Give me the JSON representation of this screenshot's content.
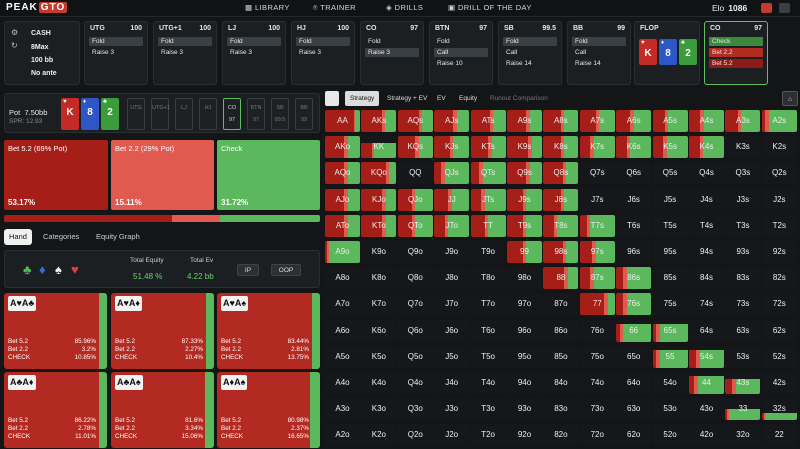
{
  "app": {
    "logo_a": "PEAK",
    "logo_b": "GTO"
  },
  "nav": [
    "LIBRARY",
    "TRAINER",
    "DRILLS",
    "DRILL OF THE DAY"
  ],
  "elo": {
    "label": "Elo",
    "value": "1086"
  },
  "game": {
    "type": "CASH",
    "players": "8Max",
    "stack": "100 bb",
    "ante": "No ante"
  },
  "seats": [
    {
      "name": "UTG",
      "stack": "100",
      "actions": [
        {
          "t": "Fold",
          "c": "hl"
        },
        {
          "t": "Raise 3",
          "c": ""
        }
      ]
    },
    {
      "name": "UTG+1",
      "stack": "100",
      "actions": [
        {
          "t": "Fold",
          "c": "hl"
        },
        {
          "t": "Raise 3",
          "c": ""
        }
      ]
    },
    {
      "name": "LJ",
      "stack": "100",
      "actions": [
        {
          "t": "Fold",
          "c": "hl"
        },
        {
          "t": "Raise 3",
          "c": ""
        }
      ]
    },
    {
      "name": "HJ",
      "stack": "100",
      "actions": [
        {
          "t": "Fold",
          "c": "hl"
        },
        {
          "t": "Raise 3",
          "c": ""
        }
      ]
    },
    {
      "name": "CO",
      "stack": "97",
      "actions": [
        {
          "t": "Fold",
          "c": ""
        },
        {
          "t": "Raise 3",
          "c": "hl"
        }
      ]
    },
    {
      "name": "BTN",
      "stack": "97",
      "actions": [
        {
          "t": "Fold",
          "c": ""
        },
        {
          "t": "Call",
          "c": "hl"
        },
        {
          "t": "Raise 10",
          "c": ""
        }
      ]
    },
    {
      "name": "SB",
      "stack": "99.5",
      "actions": [
        {
          "t": "Fold",
          "c": "hl"
        },
        {
          "t": "Call",
          "c": ""
        },
        {
          "t": "Raise 14",
          "c": ""
        }
      ]
    },
    {
      "name": "BB",
      "stack": "99",
      "actions": [
        {
          "t": "Fold",
          "c": "hl"
        },
        {
          "t": "Call",
          "c": ""
        },
        {
          "t": "Raise 14",
          "c": ""
        }
      ]
    }
  ],
  "flop": {
    "label": "FLOP",
    "cards": [
      {
        "r": "K",
        "s": "♥",
        "c": "c-red"
      },
      {
        "r": "8",
        "s": "♦",
        "c": "c-blue"
      },
      {
        "r": "2",
        "s": "♣",
        "c": "c-green"
      }
    ]
  },
  "hero": {
    "name": "CO",
    "stack": "97",
    "actions": [
      {
        "t": "Check",
        "c": "g"
      },
      {
        "t": "Bet 2.2",
        "c": "r"
      },
      {
        "t": "Bet 5.2",
        "c": "r2"
      }
    ]
  },
  "pot": {
    "label": "Pot",
    "value": "7.50bb",
    "spr": "SPR: 12.93"
  },
  "mini": [
    {
      "n": "UTG",
      "v": ""
    },
    {
      "n": "UTG+1",
      "v": ""
    },
    {
      "n": "LJ",
      "v": ""
    },
    {
      "n": "HJ",
      "v": ""
    },
    {
      "n": "CO",
      "v": "97"
    },
    {
      "n": "BTN",
      "v": "97"
    },
    {
      "n": "SB",
      "v": "99.5"
    },
    {
      "n": "BB",
      "v": "99"
    }
  ],
  "actions": [
    {
      "label": "Bet 5.2 (69% Pot)",
      "pct": "53.17%",
      "color": "#a51f18"
    },
    {
      "label": "Bet 2.2 (29% Pot)",
      "pct": "15.11%",
      "color": "#e05a50"
    },
    {
      "label": "Check",
      "pct": "31.72%",
      "color": "#5cb85c"
    }
  ],
  "freq": [
    {
      "w": 0.5317,
      "c": "#a51f18"
    },
    {
      "w": 0.1511,
      "c": "#e05a50"
    },
    {
      "w": 0.3172,
      "c": "#5cb85c"
    }
  ],
  "tabs": [
    "Hand",
    "Categories",
    "Equity Graph"
  ],
  "equity": {
    "suits": [
      {
        "s": "♣",
        "c": "#4cbf4c"
      },
      {
        "s": "♦",
        "c": "#3a6ae0"
      },
      {
        "s": "♠",
        "c": "#f0f0f0"
      },
      {
        "s": "♥",
        "c": "#e0403a"
      }
    ],
    "total_equity_label": "Total Equity",
    "total_equity": "51.48 %",
    "total_ev_label": "Total Ev",
    "total_ev": "4.22 bb",
    "ip": "IP",
    "oop": "OOP"
  },
  "combos": [
    {
      "cards": "A♥A♣",
      "b52": "85.96%",
      "b22": "3.2%",
      "ck": "10.85%",
      "g": 0.11
    },
    {
      "cards": "A♥A♦",
      "b52": "87.33%",
      "b22": "2.27%",
      "ck": "10.4%",
      "g": 0.1
    },
    {
      "cards": "A♥A♠",
      "b52": "83.44%",
      "b22": "2.81%",
      "ck": "13.75%",
      "g": 0.14
    },
    {
      "cards": "A♣A♦",
      "b52": "86.22%",
      "b22": "2.78%",
      "ck": "11.01%",
      "g": 0.11
    },
    {
      "cards": "A♣A♠",
      "b52": "81.6%",
      "b22": "3.34%",
      "ck": "15.06%",
      "g": 0.15
    },
    {
      "cards": "A♦A♠",
      "b52": "80.98%",
      "b22": "2.37%",
      "ck": "16.65%",
      "g": 0.17
    }
  ],
  "combo_labels": {
    "b52": "Bet 5.2",
    "b22": "Bet 2.2",
    "ck": "CHECK"
  },
  "rtabs": [
    "Strategy",
    "Strategy + EV",
    "EV",
    "Equity",
    "Runout Comparison"
  ],
  "ranks": [
    "A",
    "K",
    "Q",
    "J",
    "T",
    "9",
    "8",
    "7",
    "6",
    "5",
    "4",
    "3",
    "2"
  ],
  "grid": [
    [
      "AA",
      "AKs",
      "AQs",
      "AJs",
      "ATs",
      "A9s",
      "A8s",
      "A7s",
      "A6s",
      "A5s",
      "A4s",
      "A3s",
      "A2s"
    ],
    [
      "AKo",
      "KK",
      "KQs",
      "KJs",
      "KTs",
      "K9s",
      "K8s",
      "K7s",
      "K6s",
      "K5s",
      "K4s",
      "K3s",
      "K2s"
    ],
    [
      "AQo",
      "KQo",
      "QQ",
      "QJs",
      "QTs",
      "Q9s",
      "Q8s",
      "Q7s",
      "Q6s",
      "Q5s",
      "Q4s",
      "Q3s",
      "Q2s"
    ],
    [
      "AJo",
      "KJo",
      "QJo",
      "JJ",
      "JTs",
      "J9s",
      "J8s",
      "J7s",
      "J6s",
      "J5s",
      "J4s",
      "J3s",
      "J2s"
    ],
    [
      "ATo",
      "KTo",
      "QTo",
      "JTo",
      "TT",
      "T9s",
      "T8s",
      "T7s",
      "T6s",
      "T5s",
      "T4s",
      "T3s",
      "T2s"
    ],
    [
      "A9o",
      "K9o",
      "Q9o",
      "J9o",
      "T9o",
      "99",
      "98s",
      "97s",
      "96s",
      "95s",
      "94s",
      "93s",
      "92s"
    ],
    [
      "A8o",
      "K8o",
      "Q8o",
      "J8o",
      "T8o",
      "98o",
      "88",
      "87s",
      "86s",
      "85s",
      "84s",
      "83s",
      "82s"
    ],
    [
      "A7o",
      "K7o",
      "Q7o",
      "J7o",
      "T7o",
      "97o",
      "87o",
      "77",
      "76s",
      "75s",
      "74s",
      "73s",
      "72s"
    ],
    [
      "A6o",
      "K6o",
      "Q6o",
      "J6o",
      "T6o",
      "96o",
      "86o",
      "76o",
      "66",
      "65s",
      "64s",
      "63s",
      "62s"
    ],
    [
      "A5o",
      "K5o",
      "Q5o",
      "J5o",
      "T5o",
      "95o",
      "85o",
      "75o",
      "65o",
      "55",
      "54s",
      "53s",
      "52s"
    ],
    [
      "A4o",
      "K4o",
      "Q4o",
      "J4o",
      "T4o",
      "94o",
      "84o",
      "74o",
      "64o",
      "54o",
      "44",
      "43s",
      "42s"
    ],
    [
      "A3o",
      "K3o",
      "Q3o",
      "J3o",
      "T3o",
      "93o",
      "83o",
      "73o",
      "63o",
      "53o",
      "43o",
      "33",
      "32s"
    ],
    [
      "A2o",
      "K2o",
      "Q2o",
      "J2o",
      "T2o",
      "92o",
      "82o",
      "72o",
      "62o",
      "52o",
      "42o",
      "32o",
      "22"
    ]
  ],
  "strategy": {
    "AA": [
      0.82,
      0.04,
      0.14,
      1
    ],
    "AKs": [
      0.6,
      0.08,
      0.32,
      1
    ],
    "AQs": [
      0.6,
      0.08,
      0.32,
      1
    ],
    "AJs": [
      0.55,
      0.1,
      0.35,
      1
    ],
    "ATs": [
      0.55,
      0.1,
      0.35,
      1
    ],
    "A9s": [
      0.55,
      0.1,
      0.35,
      1
    ],
    "A8s": [
      0.5,
      0.1,
      0.4,
      1
    ],
    "A7s": [
      0.45,
      0.1,
      0.45,
      1
    ],
    "A6s": [
      0.4,
      0.1,
      0.5,
      1
    ],
    "A5s": [
      0.35,
      0.1,
      0.55,
      1
    ],
    "A4s": [
      0.3,
      0.12,
      0.58,
      1
    ],
    "A3s": [
      0.35,
      0.1,
      0.55,
      1
    ],
    "A2s": [
      0.1,
      0.1,
      0.8,
      1
    ],
    "AKo": [
      0.55,
      0.1,
      0.35,
      1
    ],
    "KK": [
      0.3,
      0.05,
      0.65,
      0.7
    ],
    "KQs": [
      0.5,
      0.1,
      0.4,
      1
    ],
    "KJs": [
      0.45,
      0.1,
      0.45,
      1
    ],
    "KTs": [
      0.5,
      0.1,
      0.4,
      1
    ],
    "K9s": [
      0.6,
      0.1,
      0.3,
      1
    ],
    "K8s": [
      0.5,
      0.1,
      0.4,
      1
    ],
    "K7s": [
      0.3,
      0.1,
      0.6,
      1
    ],
    "K6s": [
      0.3,
      0.1,
      0.6,
      1
    ],
    "K5s": [
      0.3,
      0.1,
      0.6,
      1
    ],
    "K4s": [
      0.3,
      0.1,
      0.6,
      1
    ],
    "AQo": [
      0.55,
      0.1,
      0.35,
      1
    ],
    "KQo": [
      0.7,
      0.1,
      0.2,
      1
    ],
    "QJs": [
      0.2,
      0.1,
      0.7,
      1
    ],
    "QTs": [
      0.25,
      0.1,
      0.65,
      1
    ],
    "Q9s": [
      0.55,
      0.1,
      0.35,
      1
    ],
    "Q8s": [
      0.55,
      0.1,
      0.35,
      1
    ],
    "AJo": [
      0.55,
      0.1,
      0.35,
      1
    ],
    "KJo": [
      0.6,
      0.1,
      0.3,
      1
    ],
    "QJo": [
      0.4,
      0.1,
      0.5,
      1
    ],
    "JJ": [
      0.4,
      0.1,
      0.5,
      1
    ],
    "JTs": [
      0.3,
      0.1,
      0.6,
      1
    ],
    "J9s": [
      0.45,
      0.1,
      0.45,
      1
    ],
    "J8s": [
      0.5,
      0.1,
      0.4,
      1
    ],
    "ATo": [
      0.55,
      0.1,
      0.35,
      1
    ],
    "KTo": [
      0.6,
      0.1,
      0.3,
      1
    ],
    "QTo": [
      0.4,
      0.1,
      0.5,
      1
    ],
    "JTo": [
      0.3,
      0.1,
      0.6,
      1
    ],
    "TT": [
      0.4,
      0.1,
      0.5,
      1
    ],
    "T9s": [
      0.45,
      0.1,
      0.45,
      1
    ],
    "T8s": [
      0.3,
      0.1,
      0.6,
      1
    ],
    "T7s": [
      0.2,
      0.1,
      0.7,
      1
    ],
    "A9o": [
      0.05,
      0.05,
      0.9,
      1
    ],
    "99": [
      0.45,
      0.1,
      0.45,
      1
    ],
    "98s": [
      0.55,
      0.1,
      0.35,
      1
    ],
    "97s": [
      0.35,
      0.1,
      0.55,
      1
    ],
    "88": [
      0.6,
      0.1,
      0.3,
      1
    ],
    "87s": [
      0.3,
      0.1,
      0.6,
      1
    ],
    "86s": [
      0.2,
      0.1,
      0.7,
      1
    ],
    "77": [
      0.7,
      0.1,
      0.2,
      1
    ],
    "76s": [
      0.2,
      0.1,
      0.75,
      1
    ],
    "66": [
      0.1,
      0.1,
      0.8,
      0.8
    ],
    "65s": [
      0.1,
      0.1,
      0.8,
      0.8
    ],
    "55": [
      0.1,
      0.1,
      0.8,
      0.8
    ],
    "54s": [
      0.2,
      0.1,
      0.7,
      0.8
    ],
    "44": [
      0.15,
      0.1,
      0.75,
      0.8
    ],
    "43s": [
      0.2,
      0.1,
      0.7,
      0.7
    ],
    "33": [
      0.05,
      0.05,
      0.9,
      0.5
    ],
    "32s": [
      0.05,
      0.05,
      0.9,
      0.3
    ]
  }
}
